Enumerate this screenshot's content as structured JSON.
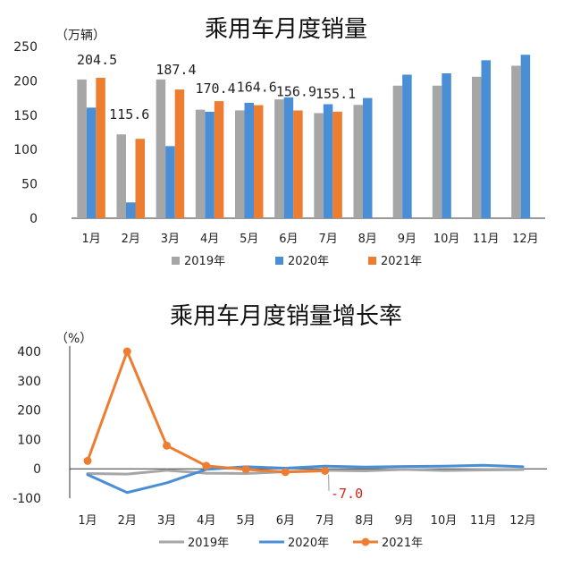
{
  "colors": {
    "s2019": "#a6a6a6",
    "s2020": "#4a8fd6",
    "s2021": "#ed7d31",
    "annotation": "#d3261b",
    "axis": "#333333"
  },
  "chart_data": [
    {
      "type": "bar",
      "title": "乘用车月度销量",
      "unit": "（万辆）",
      "categories": [
        "1月",
        "2月",
        "3月",
        "4月",
        "5月",
        "6月",
        "7月",
        "8月",
        "9月",
        "10月",
        "11月",
        "12月"
      ],
      "ylim": [
        0,
        250
      ],
      "yticks": [
        "0",
        "50",
        "100",
        "150",
        "200",
        "250"
      ],
      "series": [
        {
          "name": "2019年",
          "values": [
            202,
            122,
            202,
            158,
            157,
            173,
            153,
            165,
            193,
            193,
            206,
            222
          ]
        },
        {
          "name": "2020年",
          "values": [
            161,
            23,
            105,
            155,
            168,
            176,
            166,
            175,
            209,
            211,
            230,
            238
          ]
        },
        {
          "name": "2021年",
          "values": [
            204.5,
            115.6,
            187.4,
            170.4,
            164.6,
            156.9,
            155.1,
            null,
            null,
            null,
            null,
            null
          ]
        }
      ],
      "data_labels": [
        "204.5",
        "115.6",
        "187.4",
        "170.4",
        "164.6",
        "156.9",
        "155.1"
      ],
      "legend_position": "bottom"
    },
    {
      "type": "line",
      "title": "乘用车月度销量增长率",
      "unit": "（%）",
      "categories": [
        "1月",
        "2月",
        "3月",
        "4月",
        "5月",
        "6月",
        "7月",
        "8月",
        "9月",
        "10月",
        "11月",
        "12月"
      ],
      "ylim": [
        -100,
        400
      ],
      "yticks": [
        "-100",
        "0",
        "100",
        "200",
        "300",
        "400"
      ],
      "series": [
        {
          "name": "2019年",
          "values": [
            -16,
            -18,
            -5,
            -15,
            -16,
            -10,
            -5,
            -7,
            -2,
            -6,
            -4,
            -3
          ]
        },
        {
          "name": "2020年",
          "values": [
            -20,
            -81,
            -48,
            -2,
            7,
            2,
            9,
            6,
            8,
            9,
            12,
            7
          ]
        },
        {
          "name": "2021年",
          "values": [
            27,
            400,
            79,
            10,
            -2,
            -11,
            -7,
            null,
            null,
            null,
            null,
            null
          ]
        }
      ],
      "annotation": "-7.0",
      "legend_position": "bottom"
    }
  ]
}
